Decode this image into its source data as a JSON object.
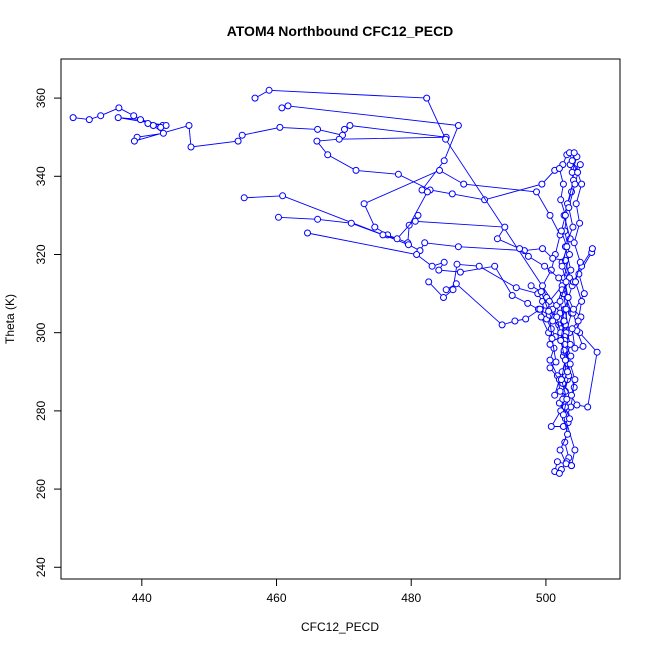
{
  "chart_data": {
    "type": "line",
    "title": "ATOM4 Northbound CFC12_PECD",
    "xlabel": "CFC12_PECD",
    "ylabel": "Theta (K)",
    "xlim": [
      428,
      511
    ],
    "ylim": [
      237,
      370
    ],
    "xticks": [
      440,
      460,
      480,
      500
    ],
    "yticks": [
      240,
      260,
      280,
      300,
      320,
      340,
      360
    ],
    "grid": false,
    "legend": "none",
    "series": [
      {
        "color": "#0000ff",
        "marker": "open-circle",
        "points": [
          [
            429.8,
            355.0
          ],
          [
            432.2,
            354.5
          ],
          [
            433.9,
            355.5
          ],
          [
            436.6,
            357.5
          ],
          [
            438.8,
            355.5
          ],
          [
            440.9,
            353.5
          ],
          [
            443.1,
            353.0
          ],
          [
            439.8,
            354.5
          ],
          [
            436.5,
            355.0
          ],
          [
            443.6,
            353.0
          ],
          [
            442.8,
            352.5
          ],
          [
            441.7,
            353.0
          ],
          [
            443.2,
            351.0
          ],
          [
            439.3,
            350.0
          ],
          [
            438.9,
            349.0
          ],
          [
            447.0,
            353.0
          ],
          [
            447.3,
            347.5
          ],
          [
            454.3,
            349.0
          ],
          [
            454.9,
            350.5
          ],
          [
            460.5,
            352.5
          ],
          [
            466.1,
            352.0
          ],
          [
            469.8,
            350.5
          ],
          [
            470.1,
            352.0
          ],
          [
            470.9,
            353.0
          ],
          [
            485.2,
            350.0
          ],
          [
            469.3,
            349.5
          ],
          [
            466.0,
            349.0
          ],
          [
            467.6,
            345.5
          ],
          [
            471.8,
            341.5
          ],
          [
            478.1,
            340.5
          ],
          [
            482.8,
            336.5
          ],
          [
            486.1,
            335.5
          ],
          [
            490.9,
            334.0
          ],
          [
            499.4,
            338.0
          ],
          [
            501.3,
            341.5
          ],
          [
            502.5,
            343.0
          ],
          [
            503.1,
            345.5
          ],
          [
            503.5,
            346.0
          ],
          [
            504.2,
            342.0
          ],
          [
            503.8,
            336.0
          ],
          [
            502.7,
            330.0
          ],
          [
            503.6,
            324.0
          ],
          [
            502.4,
            318.0
          ],
          [
            503.9,
            312.0
          ],
          [
            502.8,
            306.0
          ],
          [
            503.5,
            300.0
          ],
          [
            502.6,
            294.0
          ],
          [
            503.2,
            288.0
          ],
          [
            502.0,
            282.0
          ],
          [
            503.3,
            277.0
          ],
          [
            502.8,
            272.0
          ],
          [
            503.4,
            268.0
          ],
          [
            502.3,
            265.0
          ]
        ]
      },
      {
        "color": "#0000ff",
        "marker": "open-circle",
        "points": [
          [
            456.8,
            360.0
          ],
          [
            458.9,
            362.0
          ],
          [
            482.3,
            360.0
          ],
          [
            485.1,
            349.5
          ],
          [
            502.1,
            305.0
          ],
          [
            503.0,
            300.0
          ],
          [
            502.7,
            295.0
          ],
          [
            503.4,
            289.0
          ],
          [
            502.5,
            283.0
          ],
          [
            503.0,
            279.0
          ],
          [
            502.6,
            276.0
          ],
          [
            500.8,
            276.0
          ],
          [
            502.2,
            280.0
          ],
          [
            502.9,
            285.0
          ],
          [
            502.4,
            290.0
          ],
          [
            503.6,
            297.0
          ],
          [
            502.9,
            302.0
          ],
          [
            503.3,
            309.0
          ],
          [
            502.7,
            314.0
          ],
          [
            503.5,
            320.0
          ],
          [
            502.8,
            326.0
          ],
          [
            503.2,
            333.0
          ],
          [
            504.1,
            339.0
          ],
          [
            503.6,
            343.0
          ],
          [
            504.6,
            345.0
          ],
          [
            503.9,
            341.0
          ],
          [
            505.1,
            343.0
          ],
          [
            504.3,
            338.0
          ],
          [
            503.4,
            332.0
          ],
          [
            504.0,
            327.0
          ],
          [
            502.9,
            322.0
          ],
          [
            503.7,
            316.0
          ],
          [
            502.6,
            311.0
          ],
          [
            503.8,
            305.0
          ],
          [
            502.8,
            299.0
          ],
          [
            503.3,
            292.0
          ],
          [
            504.2,
            286.0
          ],
          [
            503.7,
            281.0
          ],
          [
            502.9,
            278.0
          ],
          [
            504.3,
            270.0
          ],
          [
            503.8,
            266.0
          ],
          [
            503.1,
            267.0
          ]
        ]
      },
      {
        "color": "#0000ff",
        "marker": "open-circle",
        "points": [
          [
            460.8,
            357.5
          ],
          [
            461.7,
            358.0
          ],
          [
            487.0,
            353.0
          ],
          [
            484.9,
            344.0
          ],
          [
            481.6,
            336.5
          ],
          [
            482.4,
            336.0
          ],
          [
            479.7,
            327.5
          ],
          [
            479.5,
            323.0
          ],
          [
            476.5,
            325.0
          ],
          [
            474.6,
            327.0
          ],
          [
            473.0,
            333.0
          ],
          [
            484.2,
            341.5
          ],
          [
            487.8,
            338.0
          ],
          [
            498.6,
            336.0
          ],
          [
            500.6,
            330.0
          ],
          [
            502.1,
            325.0
          ],
          [
            501.4,
            320.0
          ],
          [
            500.8,
            316.0
          ],
          [
            499.5,
            312.0
          ],
          [
            500.1,
            309.0
          ],
          [
            499.3,
            304.0
          ],
          [
            500.4,
            300.0
          ],
          [
            501.2,
            296.0
          ],
          [
            500.6,
            293.0
          ],
          [
            501.7,
            289.0
          ],
          [
            502.1,
            285.0
          ]
        ]
      },
      {
        "color": "#0000ff",
        "marker": "open-circle",
        "points": [
          [
            455.2,
            334.5
          ],
          [
            460.9,
            335.0
          ],
          [
            479.6,
            322.5
          ],
          [
            481.3,
            321.0
          ],
          [
            482.0,
            323.0
          ],
          [
            487.0,
            322.0
          ],
          [
            496.8,
            321.0
          ],
          [
            499.5,
            321.5
          ],
          [
            501.0,
            319.0
          ],
          [
            502.9,
            318.5
          ],
          [
            503.5,
            314.0
          ],
          [
            502.6,
            310.0
          ],
          [
            503.0,
            306.0
          ],
          [
            501.9,
            302.0
          ],
          [
            502.8,
            298.0
          ],
          [
            503.7,
            294.0
          ],
          [
            503.2,
            290.0
          ],
          [
            502.5,
            287.0
          ],
          [
            504.6,
            281.5
          ],
          [
            506.2,
            281.0
          ],
          [
            507.6,
            295.0
          ],
          [
            505.0,
            300.0
          ],
          [
            504.0,
            305.0
          ],
          [
            505.7,
            310.0
          ],
          [
            504.9,
            315.0
          ],
          [
            506.8,
            320.5
          ],
          [
            506.9,
            321.5
          ],
          [
            505.3,
            317.0
          ],
          [
            504.1,
            313.0
          ]
        ]
      },
      {
        "color": "#0000ff",
        "marker": "open-circle",
        "points": [
          [
            460.3,
            329.5
          ],
          [
            466.1,
            329.0
          ],
          [
            471.1,
            328.0
          ],
          [
            475.8,
            325.0
          ],
          [
            477.9,
            324.0
          ],
          [
            481.0,
            330.0
          ],
          [
            480.6,
            328.5
          ],
          [
            493.9,
            327.0
          ],
          [
            492.8,
            324.0
          ],
          [
            496.1,
            321.5
          ],
          [
            497.4,
            319.5
          ],
          [
            499.8,
            317.0
          ],
          [
            501.9,
            314.0
          ],
          [
            502.4,
            312.0
          ],
          [
            500.5,
            308.0
          ],
          [
            499.0,
            306.0
          ],
          [
            500.9,
            304.0
          ],
          [
            502.2,
            301.0
          ],
          [
            502.8,
            297.0
          ]
        ]
      },
      {
        "color": "#0000ff",
        "marker": "open-circle",
        "points": [
          [
            464.6,
            325.5
          ],
          [
            480.8,
            320.0
          ],
          [
            483.1,
            317.0
          ],
          [
            484.9,
            318.0
          ],
          [
            484.1,
            316.0
          ],
          [
            487.3,
            315.5
          ],
          [
            492.4,
            317.0
          ],
          [
            495.0,
            309.5
          ],
          [
            497.3,
            307.5
          ],
          [
            498.9,
            306.0
          ],
          [
            500.1,
            303.5
          ],
          [
            500.8,
            301.0
          ],
          [
            501.4,
            299.0
          ],
          [
            500.6,
            297.0
          ]
        ]
      },
      {
        "color": "#0000ff",
        "marker": "open-circle",
        "points": [
          [
            482.6,
            313.0
          ],
          [
            484.8,
            309.0
          ],
          [
            486.2,
            311.0
          ],
          [
            486.8,
            317.5
          ],
          [
            490.1,
            317.0
          ],
          [
            495.6,
            311.5
          ],
          [
            498.8,
            310.0
          ],
          [
            499.5,
            308.0
          ],
          [
            501.0,
            306.0
          ],
          [
            500.5,
            304.5
          ],
          [
            500.9,
            298.5
          ],
          [
            501.5,
            292.5
          ],
          [
            500.6,
            291.0
          ],
          [
            502.0,
            288.0
          ],
          [
            501.3,
            284.0
          ]
        ]
      },
      {
        "color": "#0000ff",
        "marker": "open-circle",
        "points": [
          [
            485.2,
            311.0
          ],
          [
            486.7,
            312.5
          ],
          [
            493.5,
            302.0
          ],
          [
            495.4,
            303.0
          ],
          [
            497.0,
            303.5
          ],
          [
            499.1,
            306.0
          ],
          [
            500.0,
            307.0
          ],
          [
            501.6,
            304.0
          ],
          [
            502.2,
            300.0
          ],
          [
            502.7,
            295.5
          ],
          [
            503.6,
            292.0
          ],
          [
            504.3,
            288.0
          ],
          [
            503.8,
            284.0
          ],
          [
            502.9,
            281.0
          ],
          [
            503.5,
            278.0
          ]
        ]
      },
      {
        "color": "#0000ff",
        "marker": "open-circle",
        "points": [
          [
            497.8,
            312.0
          ],
          [
            499.3,
            310.5
          ],
          [
            500.4,
            305.5
          ],
          [
            501.0,
            303.0
          ],
          [
            501.6,
            307.0
          ],
          [
            502.4,
            311.0
          ],
          [
            503.3,
            309.0
          ],
          [
            504.1,
            306.0
          ],
          [
            505.2,
            304.0
          ],
          [
            504.6,
            300.5
          ],
          [
            505.5,
            296.5
          ],
          [
            504.3,
            296.0
          ],
          [
            503.9,
            301.0
          ],
          [
            504.8,
            303.0
          ],
          [
            505.3,
            308.0
          ],
          [
            504.4,
            313.0
          ],
          [
            505.1,
            318.0
          ],
          [
            504.2,
            323.0
          ],
          [
            505.0,
            328.0
          ],
          [
            504.5,
            333.0
          ],
          [
            505.3,
            338.0
          ],
          [
            504.7,
            341.0
          ],
          [
            503.9,
            344.0
          ],
          [
            504.2,
            346.0
          ]
        ]
      },
      {
        "color": "#0000ff",
        "marker": "open-circle",
        "points": [
          [
            502.0,
            342.0
          ],
          [
            502.6,
            338.0
          ],
          [
            502.2,
            334.0
          ],
          [
            502.9,
            330.0
          ],
          [
            502.3,
            326.0
          ],
          [
            503.1,
            322.0
          ],
          [
            502.4,
            317.0
          ],
          [
            503.0,
            313.0
          ],
          [
            502.1,
            308.0
          ],
          [
            502.7,
            303.0
          ],
          [
            502.2,
            298.0
          ],
          [
            502.9,
            293.0
          ],
          [
            502.3,
            288.0
          ],
          [
            503.1,
            283.0
          ],
          [
            502.6,
            279.0
          ],
          [
            503.2,
            274.0
          ],
          [
            502.1,
            270.0
          ],
          [
            503.0,
            266.5
          ],
          [
            503.8,
            266.0
          ],
          [
            501.7,
            267.0
          ],
          [
            501.3,
            264.5
          ],
          [
            502.0,
            264.0
          ]
        ]
      }
    ]
  }
}
